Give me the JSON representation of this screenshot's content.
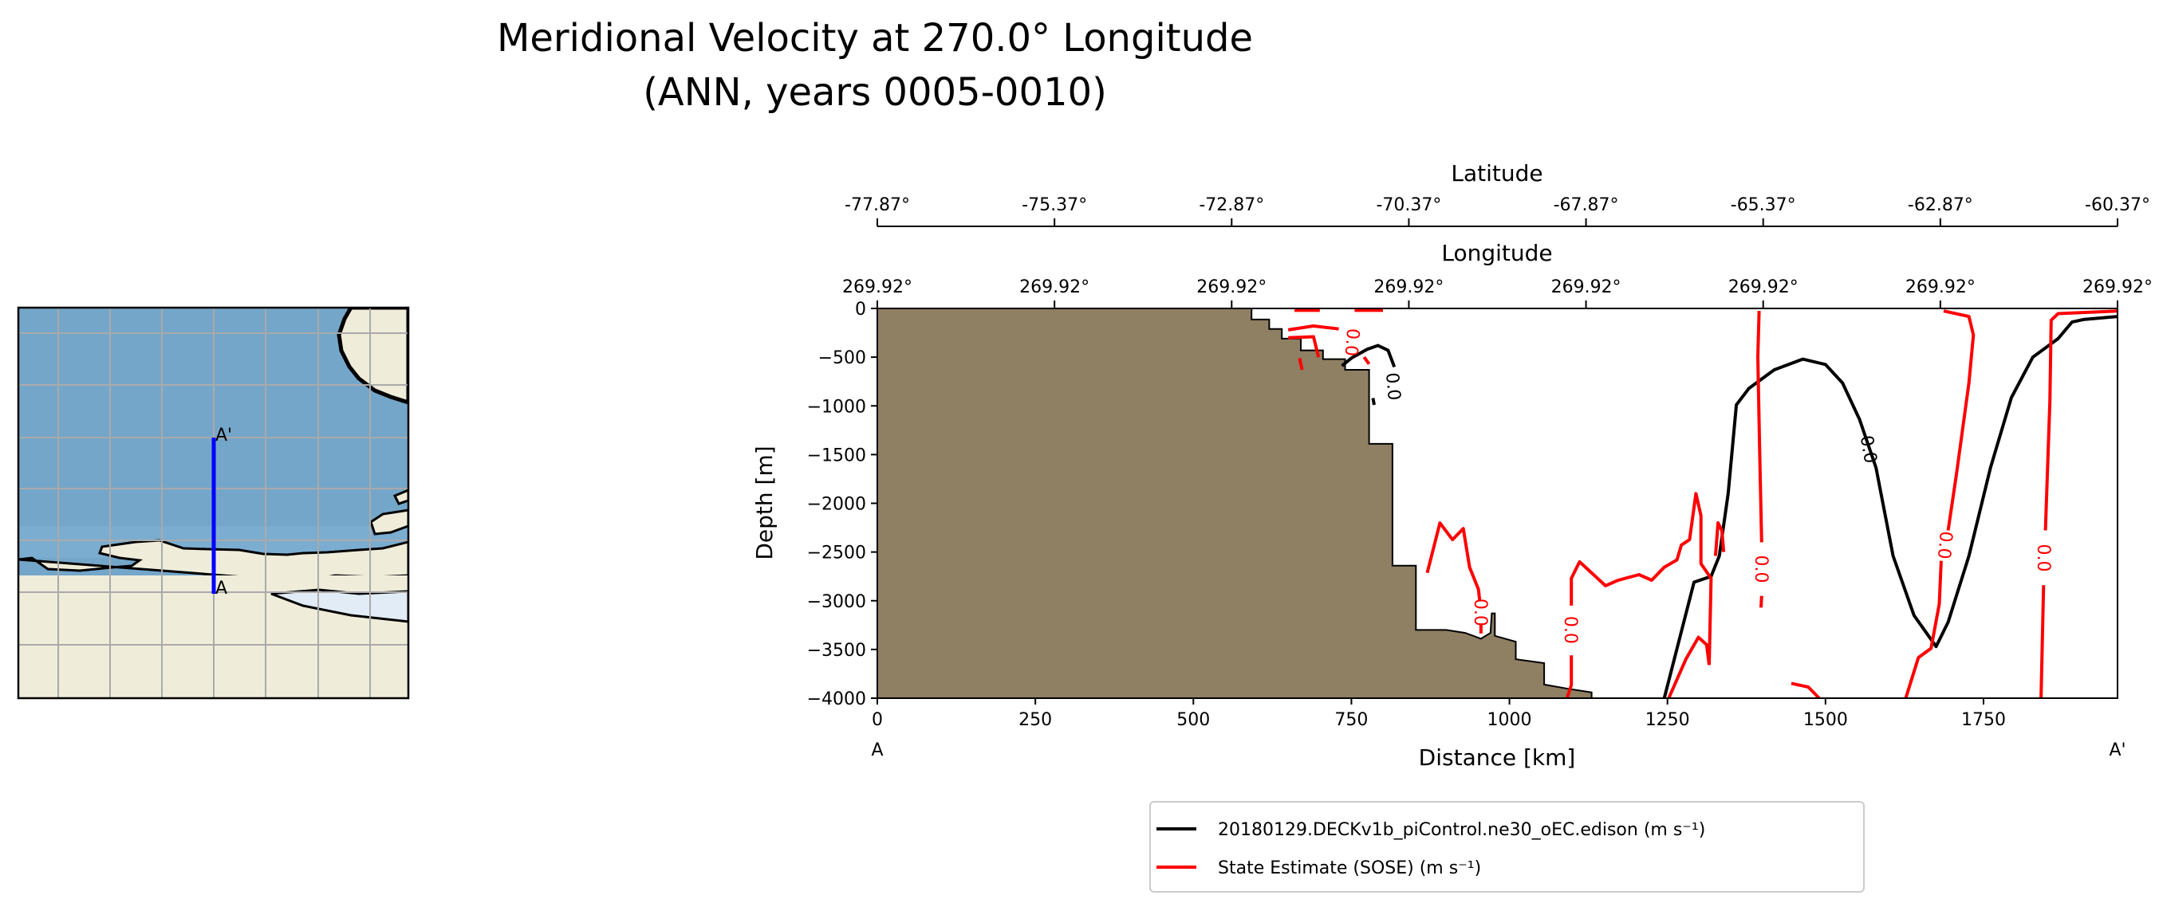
{
  "chart_data": {
    "type": "line",
    "title_line1": "Meridional Velocity at 270.0° Longitude",
    "title_line2": "(ANN, years 0005-0010)",
    "xlabel": "Distance [km]",
    "ylabel": "Depth [m]",
    "xlim": [
      0,
      1962
    ],
    "ylim": [
      -4000,
      0
    ],
    "xticks": [
      0,
      250,
      500,
      750,
      1000,
      1250,
      1500,
      1750
    ],
    "xtick_labels": [
      "0",
      "250",
      "500",
      "750",
      "1000",
      "1250",
      "1500",
      "1750"
    ],
    "yticks": [
      0,
      -500,
      -1000,
      -1500,
      -2000,
      -2500,
      -3000,
      -3500,
      -4000
    ],
    "ytick_labels": [
      "0",
      "−500",
      "−1000",
      "−1500",
      "−2000",
      "−2500",
      "−3000",
      "−3500",
      "−4000"
    ],
    "start_label": "A",
    "end_label": "A'",
    "latitude_axis": {
      "label": "Latitude",
      "ticks": [
        "-77.87°",
        "-75.37°",
        "-72.87°",
        "-70.37°",
        "-67.87°",
        "-65.37°",
        "-62.87°",
        "-60.37°"
      ]
    },
    "longitude_axis": {
      "label": "Longitude",
      "ticks": [
        "269.92°",
        "269.92°",
        "269.92°",
        "269.92°",
        "269.92°",
        "269.92°",
        "269.92°",
        "269.92°"
      ]
    },
    "bathymetry_color": "#8f7f63",
    "bathymetry": [
      [
        0,
        0
      ],
      [
        592,
        0
      ],
      [
        592,
        -114
      ],
      [
        620,
        -114
      ],
      [
        620,
        -210
      ],
      [
        640,
        -210
      ],
      [
        640,
        -310
      ],
      [
        670,
        -310
      ],
      [
        670,
        -430
      ],
      [
        705,
        -430
      ],
      [
        705,
        -520
      ],
      [
        740,
        -520
      ],
      [
        740,
        -630
      ],
      [
        778,
        -630
      ],
      [
        778,
        -1390
      ],
      [
        815,
        -1390
      ],
      [
        815,
        -2640
      ],
      [
        852,
        -2640
      ],
      [
        852,
        -3300
      ],
      [
        900,
        -3300
      ],
      [
        930,
        -3330
      ],
      [
        955,
        -3390
      ],
      [
        970,
        -3330
      ],
      [
        972,
        -3130
      ],
      [
        977,
        -3130
      ],
      [
        977,
        -3360
      ],
      [
        1010,
        -3420
      ],
      [
        1010,
        -3600
      ],
      [
        1055,
        -3640
      ],
      [
        1055,
        -3860
      ],
      [
        1090,
        -3900
      ],
      [
        1130,
        -3940
      ],
      [
        1130,
        -4000
      ],
      [
        0,
        -4000
      ]
    ],
    "series": [
      {
        "name": "20180129.DECKv1b_piControl.ne30_oEC.edison (m s⁻¹)",
        "color": "#000000",
        "contour_level_label": "0.0",
        "contours": [
          [
            [
              1245,
              -4000
            ],
            [
              1292,
              -2810
            ],
            [
              1319,
              -2750
            ],
            [
              1332,
              -2540
            ],
            [
              1346,
              -1900
            ],
            [
              1359,
              -990
            ],
            [
              1379,
              -820
            ],
            [
              1419,
              -630
            ],
            [
              1464,
              -520
            ],
            [
              1500,
              -575
            ],
            [
              1527,
              -765
            ],
            [
              1554,
              -1140
            ],
            [
              1580,
              -1635
            ],
            [
              1607,
              -2540
            ],
            [
              1640,
              -3150
            ],
            [
              1675,
              -3470
            ],
            [
              1694,
              -3220
            ],
            [
              1727,
              -2540
            ],
            [
              1761,
              -1635
            ],
            [
              1794,
              -915
            ],
            [
              1828,
              -500
            ],
            [
              1868,
              -310
            ],
            [
              1890,
              -140
            ],
            [
              1908,
              -114
            ],
            [
              1962,
              -83
            ]
          ],
          [
            [
              735,
              -590
            ],
            [
              750,
              -510
            ],
            [
              775,
              -420
            ],
            [
              792,
              -380
            ],
            [
              808,
              -430
            ],
            [
              818,
              -600
            ]
          ],
          [
            [
              784,
              -920
            ],
            [
              786,
              -990
            ]
          ]
        ],
        "labels": [
          [
            1569,
            -1445,
            80
          ],
          [
            817,
            -800,
            85
          ]
        ]
      },
      {
        "name": "State Estimate (SOSE) (m s⁻¹)",
        "color": "#ff0000",
        "contour_level_label": "0.0",
        "contours": [
          [
            [
              1395,
              -25
            ],
            [
              1393,
              -500
            ],
            [
              1396,
              -1500
            ],
            [
              1399,
              -2400
            ]
          ],
          [
            [
              1399,
              -2950
            ],
            [
              1398,
              -3070
            ]
          ],
          [
            [
              1687,
              -26
            ],
            [
              1727,
              -83
            ],
            [
              1734,
              -272
            ],
            [
              1727,
              -764
            ],
            [
              1707,
              -1710
            ],
            [
              1694,
              -2278
            ]
          ],
          [
            [
              1683,
              -2590
            ],
            [
              1680,
              -3035
            ],
            [
              1667,
              -3489
            ],
            [
              1647,
              -3584
            ],
            [
              1627,
              -4000
            ]
          ],
          [
            [
              1962,
              -26
            ],
            [
              1868,
              -53
            ],
            [
              1857,
              -121
            ],
            [
              1855,
              -953
            ],
            [
              1848,
              -2278
            ]
          ],
          [
            [
              1845,
              -2840
            ],
            [
              1841,
              -4000
            ]
          ],
          [
            [
              1091,
              -4000
            ],
            [
              1098,
              -3867
            ],
            [
              1098,
              -3560
            ]
          ],
          [
            [
              1098,
              -3050
            ],
            [
              1098,
              -2770
            ],
            [
              1111,
              -2600
            ],
            [
              1152,
              -2846
            ],
            [
              1172,
              -2789
            ],
            [
              1205,
              -2732
            ],
            [
              1225,
              -2789
            ],
            [
              1245,
              -2656
            ],
            [
              1265,
              -2581
            ],
            [
              1272,
              -2429
            ],
            [
              1285,
              -2373
            ],
            [
              1295,
              -1900
            ],
            [
              1303,
              -2127
            ],
            [
              1303,
              -2619
            ],
            [
              1319,
              -2770
            ],
            [
              1316,
              -3659
            ]
          ],
          [
            [
              1252,
              -4000
            ],
            [
              1279,
              -3602
            ],
            [
              1299,
              -3375
            ],
            [
              1312,
              -3451
            ],
            [
              1316,
              -3659
            ]
          ],
          [
            [
              1326,
              -2540
            ],
            [
              1330,
              -2200
            ],
            [
              1336,
              -2280
            ],
            [
              1339,
              -2500
            ]
          ],
          [
            [
              870,
              -2713
            ],
            [
              890,
              -2202
            ],
            [
              910,
              -2373
            ],
            [
              927,
              -2259
            ],
            [
              937,
              -2656
            ],
            [
              951,
              -2883
            ],
            [
              953,
              -3000
            ]
          ],
          [
            [
              955,
              -3250
            ],
            [
              955,
              -3337
            ]
          ],
          [
            [
              650,
              -220
            ],
            [
              690,
              -180
            ],
            [
              730,
              -210
            ]
          ],
          [
            [
              650,
              -300
            ],
            [
              690,
              -290
            ],
            [
              698,
              -500
            ]
          ],
          [
            [
              668,
              -510
            ],
            [
              672,
              -630
            ]
          ],
          [
            [
              770,
              -500
            ],
            [
              778,
              -570
            ]
          ],
          [
            [
              660,
              -20
            ],
            [
              700,
              -20
            ]
          ],
          [
            [
              755,
              -20
            ],
            [
              800,
              -20
            ]
          ],
          [
            [
              1446,
              -3848
            ],
            [
              1473,
              -3886
            ],
            [
              1490,
              -4000
            ]
          ]
        ],
        "labels": [
          [
            1399,
            -2675,
            90
          ],
          [
            1690,
            -2430,
            95
          ],
          [
            1846,
            -2560,
            90
          ],
          [
            1098,
            -3300,
            90
          ],
          [
            955,
            -3120,
            90
          ],
          [
            752,
            -348,
            95
          ]
        ]
      }
    ],
    "legend_position": "below"
  },
  "map": {
    "start_label": "A",
    "end_label": "A'",
    "ocean_color": "#74a6c9",
    "land_color": "#efecd9",
    "section_color": "#0000ff"
  }
}
